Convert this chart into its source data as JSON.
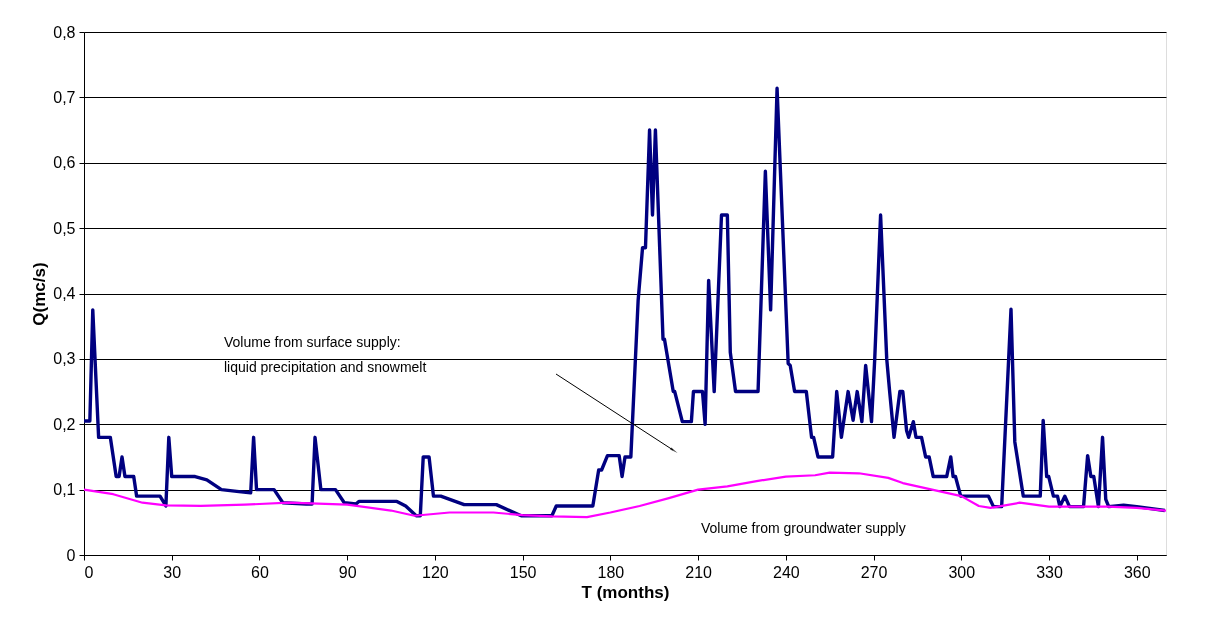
{
  "chart_data": {
    "type": "line",
    "xlabel": "T (months)",
    "ylabel": "Q(mc/s)",
    "xlim": [
      0,
      370
    ],
    "xticks": [
      0,
      30,
      60,
      90,
      120,
      150,
      180,
      210,
      240,
      270,
      300,
      330,
      360
    ],
    "ylim": [
      0,
      0.8
    ],
    "yticks": [
      0,
      {
        "value": 0.1,
        "label": "0,1"
      },
      {
        "value": 0.2,
        "label": "0,2"
      },
      {
        "value": 0.3,
        "label": "0,3"
      },
      {
        "value": 0.4,
        "label": "0,4"
      },
      {
        "value": 0.5,
        "label": "0,5"
      },
      {
        "value": 0.6,
        "label": "0,6"
      },
      {
        "value": 0.7,
        "label": "0,7"
      },
      {
        "value": 0.8,
        "label": "0,8"
      }
    ],
    "grid": "y",
    "marker": "none",
    "line_style": "solid",
    "series": [
      {
        "color": "#000080",
        "x": [
          0,
          2,
          3,
          5,
          9,
          11,
          12,
          13,
          14,
          17,
          18,
          26,
          28,
          29,
          30,
          38,
          42,
          47,
          53,
          57,
          58,
          59,
          65,
          68,
          76,
          78,
          79,
          81,
          86,
          89,
          93,
          94,
          107,
          110,
          113.6,
          115,
          116,
          118,
          119.5,
          122,
          130,
          141,
          149.5,
          160,
          161.5,
          174,
          176,
          177,
          179,
          183,
          184,
          185,
          187,
          189.5,
          191,
          192,
          193.4,
          194.4,
          195.4,
          198,
          198.5,
          201.5,
          202,
          204.6,
          207.7,
          208.4,
          211.5,
          212.4,
          213.6,
          215.5,
          218,
          220,
          221,
          222.8,
          230.5,
          233,
          234.8,
          237,
          240.8,
          241.5,
          243,
          247,
          248.8,
          249.5,
          251,
          256,
          257.4,
          259,
          261.3,
          263,
          264.4,
          266,
          267.3,
          269.3,
          270.4,
          272.4,
          274.5,
          275.5,
          277,
          279,
          280,
          281.3,
          282,
          283.6,
          284.5,
          286.4,
          287.8,
          289,
          290.4,
          295,
          296.4,
          297.2,
          298,
          299.8,
          309.3,
          311,
          313.8,
          317,
          318.3,
          321.2,
          327,
          328,
          329.2,
          329.9,
          331.5,
          332.9,
          333.7,
          335.4,
          337,
          341.8,
          343.2,
          344.3,
          345.3,
          346.9,
          348.3,
          349.4,
          350.4,
          355.5,
          360,
          369.6
        ],
        "values": [
          0.205,
          0.205,
          0.375,
          0.18,
          0.18,
          0.12,
          0.12,
          0.15,
          0.12,
          0.12,
          0.09,
          0.09,
          0.075,
          0.18,
          0.12,
          0.12,
          0.115,
          0.1,
          0.097,
          0.095,
          0.18,
          0.1,
          0.1,
          0.08,
          0.078,
          0.078,
          0.18,
          0.1,
          0.1,
          0.08,
          0.078,
          0.082,
          0.082,
          0.075,
          0.06,
          0.06,
          0.15,
          0.15,
          0.09,
          0.09,
          0.077,
          0.077,
          0.06,
          0.06,
          0.075,
          0.075,
          0.13,
          0.13,
          0.152,
          0.152,
          0.12,
          0.15,
          0.15,
          0.39,
          0.47,
          0.47,
          0.65,
          0.52,
          0.65,
          0.33,
          0.33,
          0.25,
          0.25,
          0.204,
          0.204,
          0.25,
          0.25,
          0.2,
          0.42,
          0.25,
          0.52,
          0.52,
          0.31,
          0.25,
          0.25,
          0.587,
          0.375,
          0.714,
          0.293,
          0.29,
          0.25,
          0.25,
          0.18,
          0.18,
          0.15,
          0.15,
          0.25,
          0.18,
          0.25,
          0.206,
          0.25,
          0.204,
          0.29,
          0.204,
          0.3,
          0.52,
          0.3,
          0.25,
          0.18,
          0.25,
          0.25,
          0.19,
          0.18,
          0.204,
          0.18,
          0.18,
          0.15,
          0.15,
          0.12,
          0.12,
          0.15,
          0.12,
          0.12,
          0.09,
          0.09,
          0.074,
          0.074,
          0.376,
          0.173,
          0.09,
          0.09,
          0.206,
          0.12,
          0.12,
          0.09,
          0.09,
          0.074,
          0.09,
          0.074,
          0.074,
          0.152,
          0.12,
          0.12,
          0.074,
          0.18,
          0.085,
          0.074,
          0.076,
          0.074,
          0.068
        ]
      },
      {
        "color": "#ff00ff",
        "x": [
          0,
          10,
          20,
          28,
          40,
          55,
          70,
          90,
          105,
          113,
          125,
          140,
          150,
          160,
          172,
          180,
          190,
          200,
          210,
          220,
          230,
          240,
          250,
          255,
          265,
          275,
          280,
          290,
          300,
          306,
          310,
          320,
          330,
          350,
          360,
          370
        ],
        "values": [
          0.1,
          0.093,
          0.08,
          0.076,
          0.075,
          0.077,
          0.08,
          0.077,
          0.068,
          0.06,
          0.065,
          0.065,
          0.061,
          0.059,
          0.058,
          0.065,
          0.075,
          0.087,
          0.1,
          0.105,
          0.113,
          0.12,
          0.122,
          0.126,
          0.125,
          0.118,
          0.11,
          0.1,
          0.09,
          0.075,
          0.072,
          0.08,
          0.074,
          0.074,
          0.072,
          0.068
        ]
      }
    ],
    "annotations": [
      "Volume from surface supply:\nliquid precipitation and snowmelt",
      "Volume from groundwater supply"
    ]
  }
}
